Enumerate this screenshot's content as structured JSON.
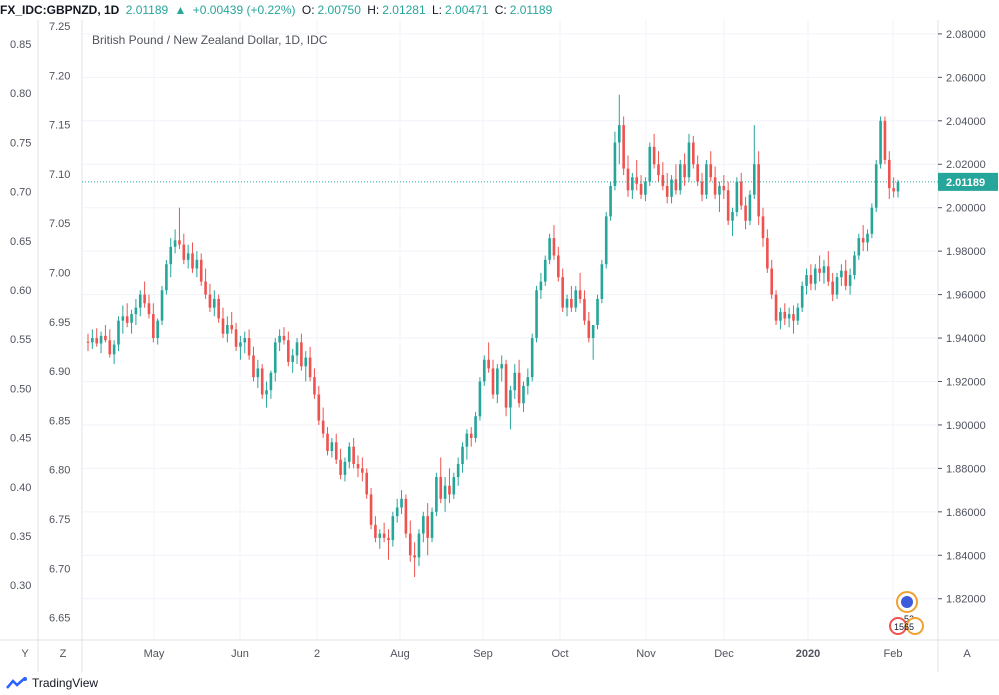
{
  "header": {
    "symbol": "FX_IDC:GBPNZD, 1D",
    "last": "2.01189",
    "change": "+0.00439 (+0.22%)",
    "open_label": "O:",
    "open": "2.00750",
    "high_label": "H:",
    "high": "2.01281",
    "low_label": "L:",
    "low": "2.00471",
    "close_label": "C:",
    "close": "2.01189"
  },
  "footer": {
    "brand": "TradingView",
    "left_buttons": [
      "Y",
      "Z"
    ],
    "right_button": "A"
  },
  "colors": {
    "up": "#26a69a",
    "down": "#ef5350",
    "grid": "#f0f3fa",
    "axis_text": "#50535e",
    "price_line": "#26a69a"
  },
  "markers": {
    "top": "52",
    "bottom": "1565"
  },
  "chart_data": {
    "type": "candlestick",
    "title": "British Pound / New Zealand Dollar, 1D, IDC",
    "price_label": "2.01189",
    "yaxis_right": {
      "ylim": [
        1.801,
        2.0864
      ],
      "ticks": [
        "2.08000",
        "2.06000",
        "2.04000",
        "2.02000",
        "2.00000",
        "1.98000",
        "1.96000",
        "1.94000",
        "1.92000",
        "1.90000",
        "1.88000",
        "1.86000",
        "1.84000",
        "1.82000"
      ]
    },
    "yaxis_left_outer": {
      "ticks": [
        "0.85",
        "0.80",
        "0.75",
        "0.70",
        "0.65",
        "0.60",
        "0.55",
        "0.50",
        "0.45",
        "0.40",
        "0.35",
        "0.30"
      ]
    },
    "yaxis_left_inner": {
      "ticks": [
        "7.25",
        "7.20",
        "7.15",
        "7.10",
        "7.05",
        "7.00",
        "6.95",
        "6.90",
        "6.85",
        "6.80",
        "6.75",
        "6.70",
        "6.65"
      ]
    },
    "xaxis": {
      "ticks": [
        "May",
        "Jun",
        "2",
        "Aug",
        "Sep",
        "Oct",
        "Nov",
        "Dec",
        "2020",
        "Feb"
      ]
    },
    "grid": true,
    "candles": [
      [
        1.9383,
        1.942,
        1.934,
        1.938
      ],
      [
        1.938,
        1.944,
        1.935,
        1.94
      ],
      [
        1.94,
        1.9445,
        1.936,
        1.9375
      ],
      [
        1.9375,
        1.943,
        1.933,
        1.941
      ],
      [
        1.941,
        1.946,
        1.938,
        1.939
      ],
      [
        1.939,
        1.944,
        1.931,
        1.9325
      ],
      [
        1.9325,
        1.939,
        1.928,
        1.937
      ],
      [
        1.937,
        1.95,
        1.934,
        1.948
      ],
      [
        1.948,
        1.955,
        1.942,
        1.95
      ],
      [
        1.95,
        1.956,
        1.945,
        1.947
      ],
      [
        1.947,
        1.953,
        1.942,
        1.951
      ],
      [
        1.951,
        1.958,
        1.946,
        1.954
      ],
      [
        1.954,
        1.962,
        1.95,
        1.96
      ],
      [
        1.96,
        1.966,
        1.954,
        1.956
      ],
      [
        1.956,
        1.96,
        1.949,
        1.951
      ],
      [
        1.951,
        1.956,
        1.938,
        1.94
      ],
      [
        1.94,
        1.949,
        1.937,
        1.948
      ],
      [
        1.948,
        1.964,
        1.946,
        1.962
      ],
      [
        1.962,
        1.976,
        1.96,
        1.974
      ],
      [
        1.974,
        1.986,
        1.968,
        1.982
      ],
      [
        1.982,
        1.99,
        1.979,
        1.985
      ],
      [
        1.985,
        2.0,
        1.981,
        1.983
      ],
      [
        1.983,
        1.988,
        1.974,
        1.976
      ],
      [
        1.976,
        1.983,
        1.972,
        1.979
      ],
      [
        1.979,
        1.984,
        1.97,
        1.972
      ],
      [
        1.972,
        1.98,
        1.968,
        1.976
      ],
      [
        1.976,
        1.979,
        1.964,
        1.966
      ],
      [
        1.966,
        1.972,
        1.958,
        1.96
      ],
      [
        1.96,
        1.965,
        1.952,
        1.954
      ],
      [
        1.954,
        1.962,
        1.95,
        1.958
      ],
      [
        1.958,
        1.96,
        1.947,
        1.949
      ],
      [
        1.949,
        1.954,
        1.94,
        1.942
      ],
      [
        1.942,
        1.95,
        1.938,
        1.946
      ],
      [
        1.946,
        1.952,
        1.942,
        1.944
      ],
      [
        1.944,
        1.947,
        1.934,
        1.936
      ],
      [
        1.936,
        1.941,
        1.93,
        1.938
      ],
      [
        1.938,
        1.943,
        1.933,
        1.94
      ],
      [
        1.94,
        1.944,
        1.93,
        1.932
      ],
      [
        1.932,
        1.936,
        1.92,
        1.922
      ],
      [
        1.922,
        1.93,
        1.917,
        1.926
      ],
      [
        1.926,
        1.928,
        1.912,
        1.914
      ],
      [
        1.914,
        1.92,
        1.908,
        1.916
      ],
      [
        1.916,
        1.925,
        1.912,
        1.924
      ],
      [
        1.924,
        1.94,
        1.92,
        1.938
      ],
      [
        1.938,
        1.944,
        1.934,
        1.941
      ],
      [
        1.941,
        1.945,
        1.937,
        1.939
      ],
      [
        1.939,
        1.943,
        1.927,
        1.929
      ],
      [
        1.929,
        1.935,
        1.924,
        1.932
      ],
      [
        1.932,
        1.94,
        1.928,
        1.938
      ],
      [
        1.938,
        1.942,
        1.925,
        1.927
      ],
      [
        1.927,
        1.934,
        1.92,
        1.931
      ],
      [
        1.931,
        1.936,
        1.92,
        1.922
      ],
      [
        1.922,
        1.926,
        1.912,
        1.914
      ],
      [
        1.914,
        1.918,
        1.9,
        1.902
      ],
      [
        1.902,
        1.908,
        1.894,
        1.896
      ],
      [
        1.896,
        1.899,
        1.886,
        1.888
      ],
      [
        1.888,
        1.894,
        1.885,
        1.892
      ],
      [
        1.892,
        1.896,
        1.882,
        1.884
      ],
      [
        1.884,
        1.889,
        1.875,
        1.877
      ],
      [
        1.877,
        1.885,
        1.874,
        1.883
      ],
      [
        1.883,
        1.892,
        1.88,
        1.89
      ],
      [
        1.89,
        1.894,
        1.88,
        1.882
      ],
      [
        1.882,
        1.886,
        1.876,
        1.88
      ],
      [
        1.88,
        1.885,
        1.874,
        1.878
      ],
      [
        1.878,
        1.88,
        1.866,
        1.868
      ],
      [
        1.868,
        1.871,
        1.852,
        1.854
      ],
      [
        1.854,
        1.858,
        1.846,
        1.848
      ],
      [
        1.848,
        1.852,
        1.843,
        1.85
      ],
      [
        1.85,
        1.855,
        1.846,
        1.848
      ],
      [
        1.848,
        1.852,
        1.838,
        1.847
      ],
      [
        1.847,
        1.86,
        1.844,
        1.858
      ],
      [
        1.858,
        1.866,
        1.855,
        1.862
      ],
      [
        1.862,
        1.87,
        1.859,
        1.866
      ],
      [
        1.866,
        1.868,
        1.848,
        1.85
      ],
      [
        1.85,
        1.856,
        1.837,
        1.84
      ],
      [
        1.84,
        1.846,
        1.83,
        1.839
      ],
      [
        1.839,
        1.852,
        1.835,
        1.85
      ],
      [
        1.85,
        1.86,
        1.846,
        1.858
      ],
      [
        1.858,
        1.864,
        1.84,
        1.848
      ],
      [
        1.848,
        1.862,
        1.846,
        1.86
      ],
      [
        1.86,
        1.878,
        1.858,
        1.876
      ],
      [
        1.876,
        1.885,
        1.864,
        1.866
      ],
      [
        1.866,
        1.876,
        1.86,
        1.872
      ],
      [
        1.872,
        1.88,
        1.864,
        1.868
      ],
      [
        1.868,
        1.878,
        1.866,
        1.876
      ],
      [
        1.876,
        1.885,
        1.872,
        1.882
      ],
      [
        1.882,
        1.892,
        1.878,
        1.89
      ],
      [
        1.89,
        1.898,
        1.884,
        1.896
      ],
      [
        1.896,
        1.899,
        1.89,
        1.894
      ],
      [
        1.894,
        1.906,
        1.892,
        1.904
      ],
      [
        1.904,
        1.922,
        1.902,
        1.92
      ],
      [
        1.92,
        1.932,
        1.918,
        1.93
      ],
      [
        1.93,
        1.938,
        1.924,
        1.926
      ],
      [
        1.926,
        1.93,
        1.912,
        1.914
      ],
      [
        1.914,
        1.928,
        1.91,
        1.926
      ],
      [
        1.926,
        1.932,
        1.92,
        1.928
      ],
      [
        1.928,
        1.93,
        1.904,
        1.908
      ],
      [
        1.908,
        1.918,
        1.898,
        1.916
      ],
      [
        1.916,
        1.928,
        1.912,
        1.924
      ],
      [
        1.924,
        1.93,
        1.908,
        1.91
      ],
      [
        1.91,
        1.92,
        1.906,
        1.918
      ],
      [
        1.918,
        1.926,
        1.914,
        1.922
      ],
      [
        1.922,
        1.942,
        1.92,
        1.94
      ],
      [
        1.94,
        1.964,
        1.938,
        1.962
      ],
      [
        1.962,
        1.97,
        1.958,
        1.966
      ],
      [
        1.966,
        1.978,
        1.964,
        1.976
      ],
      [
        1.976,
        1.988,
        1.974,
        1.986
      ],
      [
        1.986,
        1.992,
        1.976,
        1.978
      ],
      [
        1.978,
        1.982,
        1.966,
        1.968
      ],
      [
        1.968,
        1.972,
        1.952,
        1.954
      ],
      [
        1.954,
        1.96,
        1.95,
        1.958
      ],
      [
        1.958,
        1.964,
        1.952,
        1.954
      ],
      [
        1.954,
        1.964,
        1.952,
        1.962
      ],
      [
        1.962,
        1.97,
        1.956,
        1.958
      ],
      [
        1.958,
        1.962,
        1.946,
        1.948
      ],
      [
        1.948,
        1.952,
        1.938,
        1.94
      ],
      [
        1.94,
        1.944,
        1.93,
        1.946
      ],
      [
        1.946,
        1.96,
        1.944,
        1.958
      ],
      [
        1.958,
        1.976,
        1.956,
        1.974
      ],
      [
        1.974,
        1.998,
        1.972,
        1.996
      ],
      [
        1.996,
        2.012,
        1.994,
        2.01
      ],
      [
        2.01,
        2.035,
        2.008,
        2.03
      ],
      [
        2.03,
        2.052,
        2.02,
        2.038
      ],
      [
        2.038,
        2.042,
        2.015,
        2.018
      ],
      [
        2.018,
        2.024,
        2.005,
        2.008
      ],
      [
        2.008,
        2.016,
        2.004,
        2.014
      ],
      [
        2.014,
        2.022,
        2.008,
        2.011
      ],
      [
        2.011,
        2.015,
        2.004,
        2.006
      ],
      [
        2.006,
        2.014,
        2.003,
        2.012
      ],
      [
        2.012,
        2.03,
        2.01,
        2.028
      ],
      [
        2.028,
        2.034,
        2.018,
        2.02
      ],
      [
        2.02,
        2.026,
        2.012,
        2.015
      ],
      [
        2.015,
        2.021,
        2.008,
        2.01
      ],
      [
        2.01,
        2.016,
        2.002,
        2.005
      ],
      [
        2.005,
        2.015,
        2.002,
        2.013
      ],
      [
        2.013,
        2.02,
        2.006,
        2.008
      ],
      [
        2.008,
        2.022,
        2.006,
        2.02
      ],
      [
        2.02,
        2.025,
        2.01,
        2.014
      ],
      [
        2.014,
        2.034,
        2.012,
        2.03
      ],
      [
        2.03,
        2.033,
        2.018,
        2.02
      ],
      [
        2.02,
        2.024,
        2.01,
        2.012
      ],
      [
        2.012,
        2.016,
        2.003,
        2.006
      ],
      [
        2.006,
        2.022,
        2.004,
        2.02
      ],
      [
        2.02,
        2.026,
        2.012,
        2.014
      ],
      [
        2.014,
        2.019,
        2.004,
        2.006
      ],
      [
        2.006,
        2.012,
        1.998,
        2.01
      ],
      [
        2.01,
        2.015,
        2.004,
        2.008
      ],
      [
        2.008,
        2.012,
        1.992,
        1.994
      ],
      [
        1.994,
        2.0,
        1.987,
        1.998
      ],
      [
        1.998,
        2.014,
        1.996,
        2.012
      ],
      [
        2.012,
        2.016,
        1.999,
        2.001
      ],
      [
        2.001,
        2.005,
        1.99,
        1.994
      ],
      [
        1.994,
        2.008,
        1.992,
        2.006
      ],
      [
        2.006,
        2.038,
        2.004,
        2.02
      ],
      [
        2.02,
        2.026,
        1.992,
        1.996
      ],
      [
        1.996,
        2.0,
        1.982,
        1.986
      ],
      [
        1.986,
        1.99,
        1.97,
        1.972
      ],
      [
        1.972,
        1.976,
        1.958,
        1.96
      ],
      [
        1.96,
        1.962,
        1.946,
        1.948
      ],
      [
        1.948,
        1.954,
        1.944,
        1.952
      ],
      [
        1.952,
        1.956,
        1.946,
        1.949
      ],
      [
        1.949,
        1.954,
        1.945,
        1.951
      ],
      [
        1.951,
        1.955,
        1.942,
        1.948
      ],
      [
        1.948,
        1.956,
        1.946,
        1.954
      ],
      [
        1.954,
        1.966,
        1.952,
        1.964
      ],
      [
        1.964,
        1.972,
        1.96,
        1.969
      ],
      [
        1.969,
        1.974,
        1.962,
        1.965
      ],
      [
        1.965,
        1.974,
        1.962,
        1.972
      ],
      [
        1.972,
        1.978,
        1.966,
        1.97
      ],
      [
        1.97,
        1.976,
        1.965,
        1.973
      ],
      [
        1.973,
        1.98,
        1.964,
        1.966
      ],
      [
        1.966,
        1.97,
        1.957,
        1.96
      ],
      [
        1.96,
        1.97,
        1.958,
        1.968
      ],
      [
        1.968,
        1.974,
        1.964,
        1.971
      ],
      [
        1.971,
        1.976,
        1.962,
        1.964
      ],
      [
        1.964,
        1.972,
        1.96,
        1.969
      ],
      [
        1.969,
        1.98,
        1.967,
        1.978
      ],
      [
        1.978,
        1.988,
        1.976,
        1.986
      ],
      [
        1.986,
        1.992,
        1.98,
        1.984
      ],
      [
        1.984,
        1.99,
        1.98,
        1.988
      ],
      [
        1.988,
        2.002,
        1.986,
        2.0
      ],
      [
        2.0,
        2.022,
        1.998,
        2.02
      ],
      [
        2.02,
        2.042,
        2.018,
        2.04
      ],
      [
        2.04,
        2.042,
        2.02,
        2.022
      ],
      [
        2.022,
        2.026,
        2.004,
        2.009
      ],
      [
        2.009,
        2.014,
        2.0047,
        2.0075
      ],
      [
        2.0075,
        2.0128,
        2.0047,
        2.0119
      ]
    ]
  }
}
